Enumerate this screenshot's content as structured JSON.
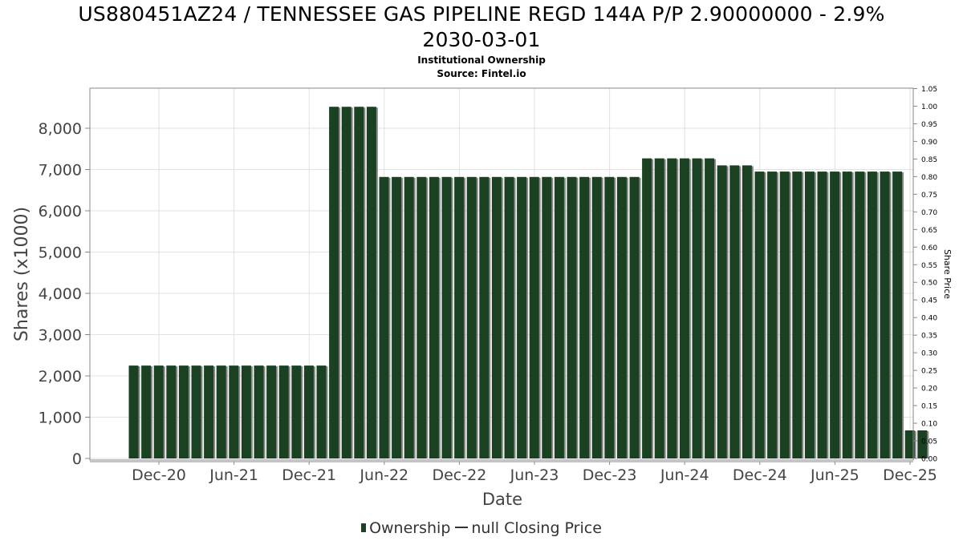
{
  "chart_data": {
    "type": "bar",
    "title_line1": "US880451AZ24 / TENNESSEE GAS PIPELINE REGD 144A P/P 2.90000000 - 2.9%",
    "title_line2": "2030-03-01",
    "subtitle": "Institutional Ownership",
    "source": "Source: Fintel.io",
    "xlabel": "Date",
    "ylabel": "Shares (x1000)",
    "y2label": "Share Price",
    "ylim": [
      0,
      8800
    ],
    "y2lim": [
      0,
      1.05
    ],
    "yticks": [
      "0",
      "1,000",
      "2,000",
      "3,000",
      "4,000",
      "5,000",
      "6,000",
      "7,000",
      "8,000"
    ],
    "y2ticks": [
      "0.00",
      "0.05",
      "0.10",
      "0.15",
      "0.20",
      "0.25",
      "0.30",
      "0.35",
      "0.40",
      "0.45",
      "0.50",
      "0.55",
      "0.60",
      "0.65",
      "0.70",
      "0.75",
      "0.80",
      "0.85",
      "0.90",
      "0.95",
      "1.00",
      "1.05"
    ],
    "xticks": [
      "Dec-20",
      "Jun-21",
      "Dec-21",
      "Jun-22",
      "Dec-22",
      "Jun-23",
      "Dec-23",
      "Jun-24",
      "Dec-24",
      "Jun-25",
      "Dec-25"
    ],
    "grid": true,
    "legend_position": "bottom",
    "series": [
      {
        "name": "Ownership",
        "color": "#1a4222",
        "values": [
          2250,
          2250,
          2250,
          2250,
          2250,
          2250,
          2250,
          2250,
          2250,
          2250,
          2250,
          2250,
          2250,
          2250,
          2250,
          2250,
          8520,
          8520,
          8520,
          8520,
          6820,
          6820,
          6820,
          6820,
          6820,
          6820,
          6820,
          6820,
          6820,
          6820,
          6820,
          6820,
          6820,
          6820,
          6820,
          6820,
          6820,
          6820,
          6820,
          6820,
          6820,
          7270,
          7270,
          7270,
          7270,
          7270,
          7270,
          7100,
          7100,
          7100,
          6950,
          6950,
          6950,
          6950,
          6950,
          6950,
          6950,
          6950,
          6950,
          6950,
          6950,
          6950,
          680,
          680
        ]
      },
      {
        "name": "null Closing Price",
        "color": "#333333",
        "values": []
      }
    ]
  }
}
